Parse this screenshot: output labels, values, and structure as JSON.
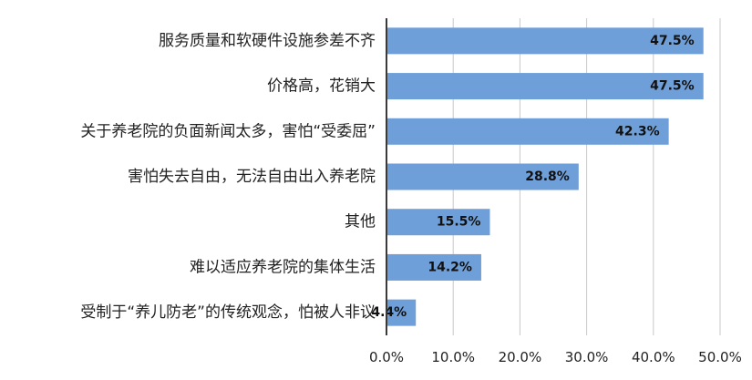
{
  "chart_data": {
    "type": "bar",
    "orientation": "horizontal",
    "title": "",
    "xlabel": "",
    "ylabel": "",
    "xlim": [
      0,
      50
    ],
    "grid": "vertical",
    "bar_color": "#6f9fd8",
    "grid_color": "#c8c8c8",
    "categories": [
      "服务质量和软硬件设施参差不齐",
      "价格高，花销大",
      "关于养老院的负面新闻太多，害怕“受委屈”",
      "害怕失去自由，无法自由出入养老院",
      "其他",
      "难以适应养老院的集体生活",
      "受制于“养儿防老”的传统观念，怕被人非议"
    ],
    "values": [
      47.5,
      47.5,
      42.3,
      28.8,
      15.5,
      14.2,
      4.4
    ],
    "data_labels": [
      "47.5%",
      "47.5%",
      "42.3%",
      "28.8%",
      "15.5%",
      "14.2%",
      "4.4%"
    ],
    "tick_values": [
      0,
      10,
      20,
      30,
      40,
      50
    ],
    "tick_labels": [
      "0.0%",
      "10.0%",
      "20.0%",
      "30.0%",
      "40.0%",
      "50.0%"
    ]
  }
}
